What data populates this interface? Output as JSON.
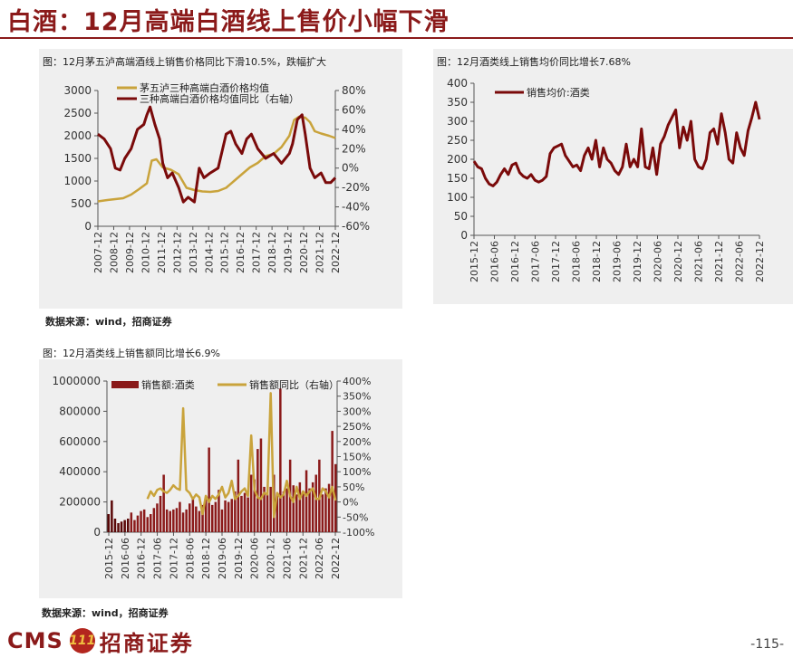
{
  "page": {
    "title": "白酒：12月高端白酒线上售价小幅下滑",
    "page_number": "-115-",
    "logo_text": "CMS",
    "logo_mark": "111",
    "logo_cn": "招商证券",
    "source_1": "数据来源：wind，招商证券",
    "source_2": "数据来源：wind，招商证券"
  },
  "colors": {
    "gold": "#c9a33b",
    "maroon": "#7a0a0a",
    "brand": "#8b1a1a"
  },
  "chart_data": [
    {
      "type": "line",
      "caption": "图：12月茅五泸高端酒线上销售价格同比下滑10.5%，跌幅扩大",
      "x_labels": [
        "2007-12",
        "2008-12",
        "2009-12",
        "2010-12",
        "2011-12",
        "2012-12",
        "2013-12",
        "2014-12",
        "2015-12",
        "2016-12",
        "2017-12",
        "2018-12",
        "2019-12",
        "2020-12",
        "2021-12",
        "2022-12"
      ],
      "ylim_left": [
        0,
        3000
      ],
      "yticks_left": [
        "0",
        "500",
        "1000",
        "1500",
        "2000",
        "2500",
        "3000"
      ],
      "ylim_right": [
        -60,
        80
      ],
      "yticks_right": [
        "-60%",
        "-40%",
        "-20%",
        "0%",
        "20%",
        "40%",
        "60%",
        "80%"
      ],
      "series": [
        {
          "name": "茅五泸三种高端白酒价格均值",
          "axis": "left",
          "color": "#c9a33b",
          "x": [
            2007.9,
            2008.5,
            2009.0,
            2009.5,
            2010.0,
            2010.5,
            2011.0,
            2011.3,
            2011.6,
            2012.0,
            2012.5,
            2013.0,
            2013.5,
            2014.0,
            2014.5,
            2015.0,
            2015.5,
            2016.0,
            2016.5,
            2017.0,
            2017.5,
            2018.0,
            2018.5,
            2019.0,
            2019.5,
            2020.0,
            2020.3,
            2020.6,
            2021.0,
            2021.3,
            2021.6,
            2022.0,
            2022.5,
            2022.9
          ],
          "values": [
            550,
            580,
            600,
            620,
            700,
            820,
            950,
            1450,
            1480,
            1300,
            1250,
            1150,
            850,
            800,
            770,
            760,
            780,
            850,
            1000,
            1150,
            1300,
            1400,
            1550,
            1600,
            1750,
            2000,
            2350,
            2420,
            2400,
            2300,
            2100,
            2050,
            2000,
            1950
          ]
        },
        {
          "name": "三种高端白酒价格均值同比（右轴）",
          "axis": "right",
          "color": "#7a0a0a",
          "x": [
            2007.9,
            2008.3,
            2008.7,
            2009.0,
            2009.3,
            2009.6,
            2010.0,
            2010.4,
            2010.8,
            2011.0,
            2011.2,
            2011.5,
            2011.8,
            2012.0,
            2012.3,
            2012.6,
            2013.0,
            2013.3,
            2013.6,
            2014.0,
            2014.3,
            2014.6,
            2015.0,
            2015.5,
            2016.0,
            2016.3,
            2016.6,
            2017.0,
            2017.3,
            2017.6,
            2018.0,
            2018.5,
            2019.0,
            2019.5,
            2020.0,
            2020.2,
            2020.5,
            2020.8,
            2021.0,
            2021.3,
            2021.6,
            2022.0,
            2022.3,
            2022.6,
            2022.9
          ],
          "values": [
            35,
            30,
            20,
            0,
            -2,
            10,
            20,
            40,
            45,
            55,
            63,
            45,
            30,
            5,
            -10,
            -5,
            -20,
            -35,
            -30,
            -35,
            0,
            -10,
            -5,
            0,
            35,
            38,
            25,
            15,
            30,
            35,
            20,
            10,
            15,
            5,
            15,
            25,
            50,
            55,
            35,
            0,
            -10,
            -5,
            -15,
            -15,
            -10
          ]
        }
      ]
    },
    {
      "type": "line",
      "caption": "图：12月酒类线上销售均价同比增长7.68%",
      "x_labels": [
        "2015-12",
        "2016-06",
        "2016-12",
        "2017-06",
        "2017-12",
        "2018-06",
        "2018-12",
        "2019-06",
        "2019-12",
        "2020-06",
        "2020-12",
        "2021-06",
        "2021-12",
        "2022-06",
        "2022-12"
      ],
      "ylim": [
        0,
        400
      ],
      "yticks": [
        "0",
        "50",
        "100",
        "150",
        "200",
        "250",
        "300",
        "350",
        "400"
      ],
      "series": [
        {
          "name": "销售均价:酒类",
          "color": "#7a0a0a",
          "values": [
            195,
            180,
            175,
            150,
            135,
            130,
            140,
            160,
            175,
            160,
            185,
            190,
            165,
            155,
            150,
            160,
            145,
            140,
            145,
            155,
            215,
            230,
            235,
            240,
            210,
            195,
            180,
            185,
            170,
            210,
            230,
            200,
            250,
            180,
            230,
            200,
            190,
            170,
            160,
            180,
            240,
            180,
            200,
            180,
            280,
            180,
            175,
            230,
            160,
            240,
            260,
            290,
            310,
            330,
            230,
            285,
            250,
            300,
            200,
            180,
            175,
            200,
            270,
            280,
            240,
            320,
            270,
            200,
            190,
            270,
            230,
            210,
            275,
            310,
            350,
            305
          ]
        }
      ]
    },
    {
      "type": "bar",
      "caption": "图：12月酒类线上销售额同比增长6.9%",
      "x_labels": [
        "2015-12",
        "2016-06",
        "2016-12",
        "2017-06",
        "2017-12",
        "2018-06",
        "2018-12",
        "2019-06",
        "2019-12",
        "2020-06",
        "2020-12",
        "2021-06",
        "2021-12",
        "2022-06",
        "2022-12"
      ],
      "ylim_left": [
        0,
        1000000
      ],
      "yticks_left": [
        "0",
        "200000",
        "400000",
        "600000",
        "800000",
        "1000000"
      ],
      "ylim_right": [
        -100,
        400
      ],
      "yticks_right": [
        "-100%",
        "-50%",
        "0%",
        "50%",
        "100%",
        "150%",
        "200%",
        "250%",
        "300%",
        "350%",
        "400%"
      ],
      "series": [
        {
          "name": "销售额:酒类",
          "axis": "left",
          "color": "#8b1a1a",
          "values": [
            120000,
            210000,
            90000,
            60000,
            70000,
            80000,
            90000,
            130000,
            80000,
            110000,
            140000,
            150000,
            100000,
            120000,
            160000,
            190000,
            240000,
            380000,
            150000,
            140000,
            150000,
            160000,
            200000,
            130000,
            150000,
            190000,
            220000,
            170000,
            140000,
            180000,
            220000,
            560000,
            180000,
            200000,
            280000,
            150000,
            210000,
            200000,
            220000,
            270000,
            480000,
            240000,
            260000,
            230000,
            380000,
            350000,
            550000,
            620000,
            300000,
            250000,
            300000,
            380000,
            260000,
            950000,
            270000,
            290000,
            480000,
            310000,
            250000,
            330000,
            260000,
            410000,
            290000,
            330000,
            380000,
            480000,
            250000,
            290000,
            320000,
            670000,
            450000
          ],
          "highlight": [
            0,
            1,
            2,
            3,
            4,
            5,
            6
          ]
        },
        {
          "name": "销售额同比（右轴）",
          "axis": "right",
          "color": "#c9a33b",
          "values": [
            null,
            null,
            null,
            null,
            null,
            null,
            null,
            null,
            null,
            null,
            null,
            null,
            10,
            35,
            20,
            40,
            45,
            35,
            30,
            40,
            55,
            45,
            40,
            310,
            40,
            30,
            10,
            25,
            15,
            -40,
            20,
            0,
            20,
            10,
            25,
            50,
            15,
            30,
            70,
            10,
            20,
            35,
            45,
            20,
            220,
            40,
            15,
            10,
            30,
            25,
            360,
            -50,
            30,
            15,
            25,
            70,
            20,
            0,
            50,
            10,
            35,
            20,
            35,
            45,
            10,
            10,
            45,
            35,
            15,
            50,
            5
          ]
        }
      ]
    }
  ]
}
